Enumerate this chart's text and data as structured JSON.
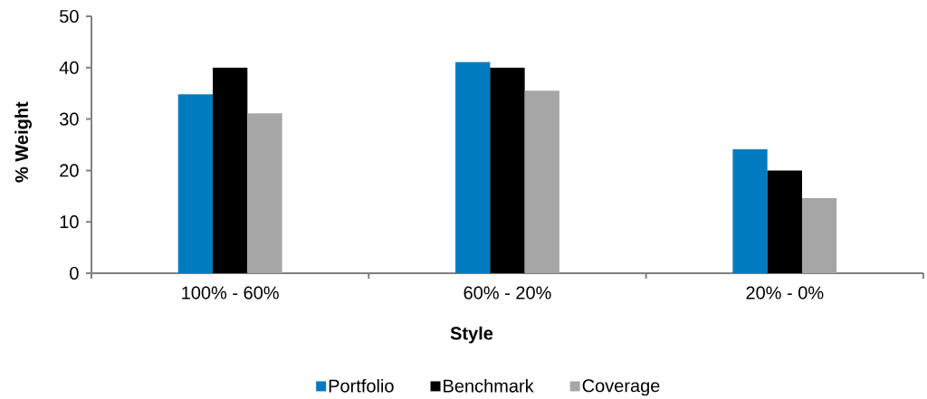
{
  "chart_data": {
    "type": "bar",
    "xlabel": "Style",
    "ylabel": "% Weight",
    "categories": [
      "100% - 60%",
      "60% - 20%",
      "20% - 0%"
    ],
    "series": [
      {
        "name": "Portfolio",
        "color": "#007bc0",
        "values": [
          34.8,
          41.1,
          24.1
        ]
      },
      {
        "name": "Benchmark",
        "color": "#000000",
        "values": [
          40,
          40,
          20
        ]
      },
      {
        "name": "Coverage",
        "color": "#a6a6a6",
        "values": [
          31.1,
          35.5,
          14.6
        ]
      }
    ],
    "ylim": [
      0,
      50
    ],
    "yticks": [
      0,
      10,
      20,
      30,
      40,
      50
    ],
    "grid": false,
    "legend": "bottom"
  }
}
